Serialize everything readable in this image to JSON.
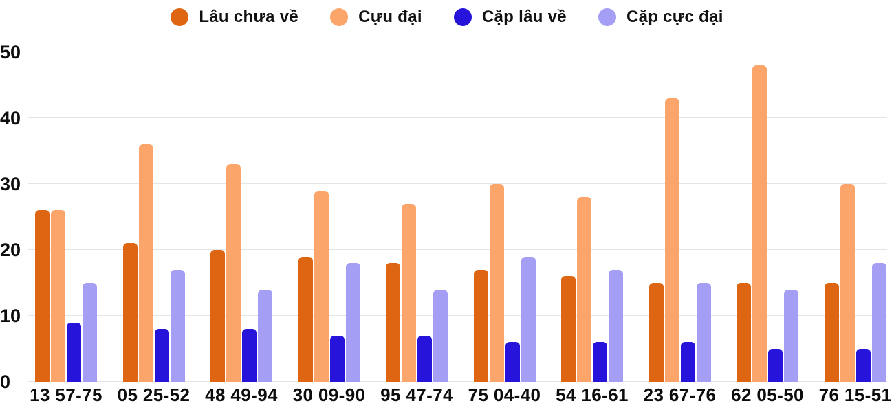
{
  "chart_data": {
    "type": "bar",
    "categories": [
      "13 57-75",
      "05 25-52",
      "48 49-94",
      "30 09-90",
      "95 47-74",
      "75 04-40",
      "54 16-61",
      "23 67-76",
      "62 05-50",
      "76 15-51"
    ],
    "series": [
      {
        "name": "Lâu chưa về",
        "color": "#DE6511",
        "values": [
          26,
          21,
          20,
          19,
          18,
          17,
          16,
          15,
          15,
          15
        ]
      },
      {
        "name": "Cựu đại",
        "color": "#FBA56B",
        "values": [
          26,
          36,
          33,
          29,
          27,
          30,
          28,
          43,
          48,
          30
        ]
      },
      {
        "name": "Cặp lâu về",
        "color": "#2614DB",
        "values": [
          9,
          8,
          8,
          7,
          7,
          6,
          6,
          6,
          5,
          5
        ]
      },
      {
        "name": "Cặp cực đại",
        "color": "#A49EF5",
        "values": [
          15,
          17,
          14,
          18,
          14,
          19,
          17,
          15,
          14,
          18
        ]
      }
    ],
    "ylim": [
      0,
      50
    ],
    "yticks": [
      0,
      10,
      20,
      30,
      40,
      50
    ],
    "grid": true,
    "legend_position": "top"
  },
  "style": {
    "grid_color": "#E4E4E4",
    "text_color": "#0D0D0D",
    "background": "#FFFFFF"
  }
}
